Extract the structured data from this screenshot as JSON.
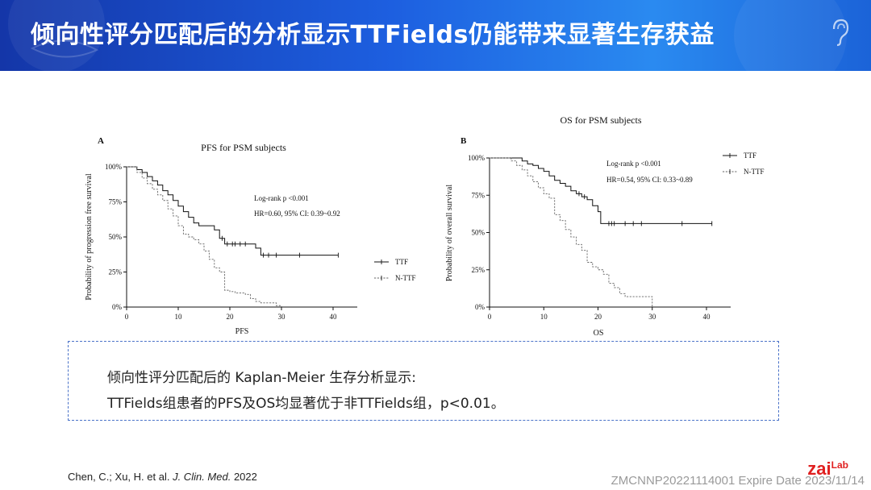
{
  "banner": {
    "title": "倾向性评分匹配后的分析显示TTFields仍能带来显著生存获益"
  },
  "summary": {
    "line1": "倾向性评分匹配后的 Kaplan-Meier 生存分析显示:",
    "line2": "TTFields组患者的PFS及OS均显著优于非TTFields组，p<0.01。"
  },
  "citation": {
    "authors": "Chen, C.; Xu, H. et al.",
    "journal": "J. Clin. Med.",
    "year": "2022"
  },
  "footer": {
    "expire": "ZMCNNP20221114001 Expire Date 2023/11/14",
    "logo_main": "zai",
    "logo_sup": "Lab"
  },
  "colors": {
    "banner_start": "#1436a8",
    "banner_end": "#2a8af0",
    "box_border": "#4a72c8",
    "logo": "#e02020"
  },
  "chart_data": [
    {
      "panel": "A",
      "type": "line",
      "title": "PFS for PSM subjects",
      "xlabel": "PFS",
      "ylabel": "Probability of progression free survival",
      "xlim": [
        0,
        40
      ],
      "ylim": [
        0,
        100
      ],
      "xticks": [
        0,
        10,
        20,
        30,
        40
      ],
      "yticks": [
        "0%",
        "25%",
        "50%",
        "75%",
        "100%"
      ],
      "annotation": [
        "Log-rank p <0.001",
        "HR=0.60, 95% CI: 0.39~0.92"
      ],
      "legend_position": "right",
      "series": [
        {
          "name": "TTF",
          "style": "solid",
          "steps": [
            [
              0,
              100
            ],
            [
              2,
              98
            ],
            [
              3,
              96
            ],
            [
              4,
              93
            ],
            [
              5,
              90
            ],
            [
              6,
              87
            ],
            [
              7,
              83
            ],
            [
              8,
              80
            ],
            [
              9,
              76
            ],
            [
              10,
              72
            ],
            [
              11,
              68
            ],
            [
              12,
              64
            ],
            [
              13,
              60
            ],
            [
              14,
              58
            ],
            [
              17,
              55
            ],
            [
              18,
              49
            ],
            [
              19,
              45
            ],
            [
              24,
              45
            ],
            [
              25,
              42
            ],
            [
              26,
              37
            ],
            [
              41,
              37
            ]
          ],
          "censored": [
            18.5,
            19.5,
            20.5,
            21,
            22,
            23,
            26.5,
            27.5,
            29,
            33.5,
            41
          ]
        },
        {
          "name": "N-TTF",
          "style": "dashed",
          "steps": [
            [
              0,
              100
            ],
            [
              2,
              96
            ],
            [
              3,
              92
            ],
            [
              4,
              88
            ],
            [
              5,
              84
            ],
            [
              6,
              80
            ],
            [
              7,
              76
            ],
            [
              8,
              70
            ],
            [
              9,
              65
            ],
            [
              10,
              58
            ],
            [
              11,
              52
            ],
            [
              12,
              50
            ],
            [
              13,
              48
            ],
            [
              14,
              45
            ],
            [
              15,
              40
            ],
            [
              16,
              34
            ],
            [
              17,
              28
            ],
            [
              18,
              25
            ],
            [
              19,
              12
            ],
            [
              20,
              11
            ],
            [
              21,
              10
            ],
            [
              23,
              9
            ],
            [
              24,
              6
            ],
            [
              25,
              4
            ],
            [
              26,
              3
            ],
            [
              29,
              1
            ],
            [
              30,
              0
            ]
          ],
          "censored": []
        }
      ]
    },
    {
      "panel": "B",
      "type": "line",
      "title": "OS for PSM subjects",
      "xlabel": "OS",
      "ylabel": "Probability of overall survival",
      "xlim": [
        0,
        40
      ],
      "ylim": [
        0,
        100
      ],
      "xticks": [
        0,
        10,
        20,
        30,
        40
      ],
      "yticks": [
        "0%",
        "25%",
        "50%",
        "75%",
        "100%"
      ],
      "annotation": [
        "Log-rank p <0.001",
        "HR=0.54, 95% CI: 0.33~0.89"
      ],
      "legend_position": "top-right",
      "series": [
        {
          "name": "TTF",
          "style": "solid",
          "steps": [
            [
              0,
              100
            ],
            [
              5,
              100
            ],
            [
              6,
              98
            ],
            [
              7,
              96
            ],
            [
              8,
              95
            ],
            [
              9,
              93
            ],
            [
              10,
              91
            ],
            [
              11,
              88
            ],
            [
              12,
              85
            ],
            [
              13,
              83
            ],
            [
              14,
              81
            ],
            [
              15,
              78
            ],
            [
              16,
              76
            ],
            [
              17,
              74
            ],
            [
              18,
              72
            ],
            [
              19,
              68
            ],
            [
              20,
              64
            ],
            [
              20.5,
              56
            ],
            [
              41,
              56
            ]
          ],
          "censored": [
            16.5,
            17.5,
            22,
            22.5,
            23,
            25,
            26.5,
            28,
            35.5,
            41
          ]
        },
        {
          "name": "N-TTF",
          "style": "dashed",
          "steps": [
            [
              0,
              100
            ],
            [
              4,
              98
            ],
            [
              5,
              95
            ],
            [
              6,
              92
            ],
            [
              7,
              88
            ],
            [
              8,
              84
            ],
            [
              9,
              80
            ],
            [
              10,
              76
            ],
            [
              11,
              73
            ],
            [
              12,
              62
            ],
            [
              13,
              58
            ],
            [
              14,
              52
            ],
            [
              15,
              47
            ],
            [
              16,
              42
            ],
            [
              17,
              38
            ],
            [
              18,
              30
            ],
            [
              19,
              27
            ],
            [
              20,
              25
            ],
            [
              21,
              22
            ],
            [
              22,
              16
            ],
            [
              23,
              13
            ],
            [
              24,
              9
            ],
            [
              25,
              7
            ],
            [
              30,
              0
            ]
          ],
          "censored": []
        }
      ]
    }
  ]
}
